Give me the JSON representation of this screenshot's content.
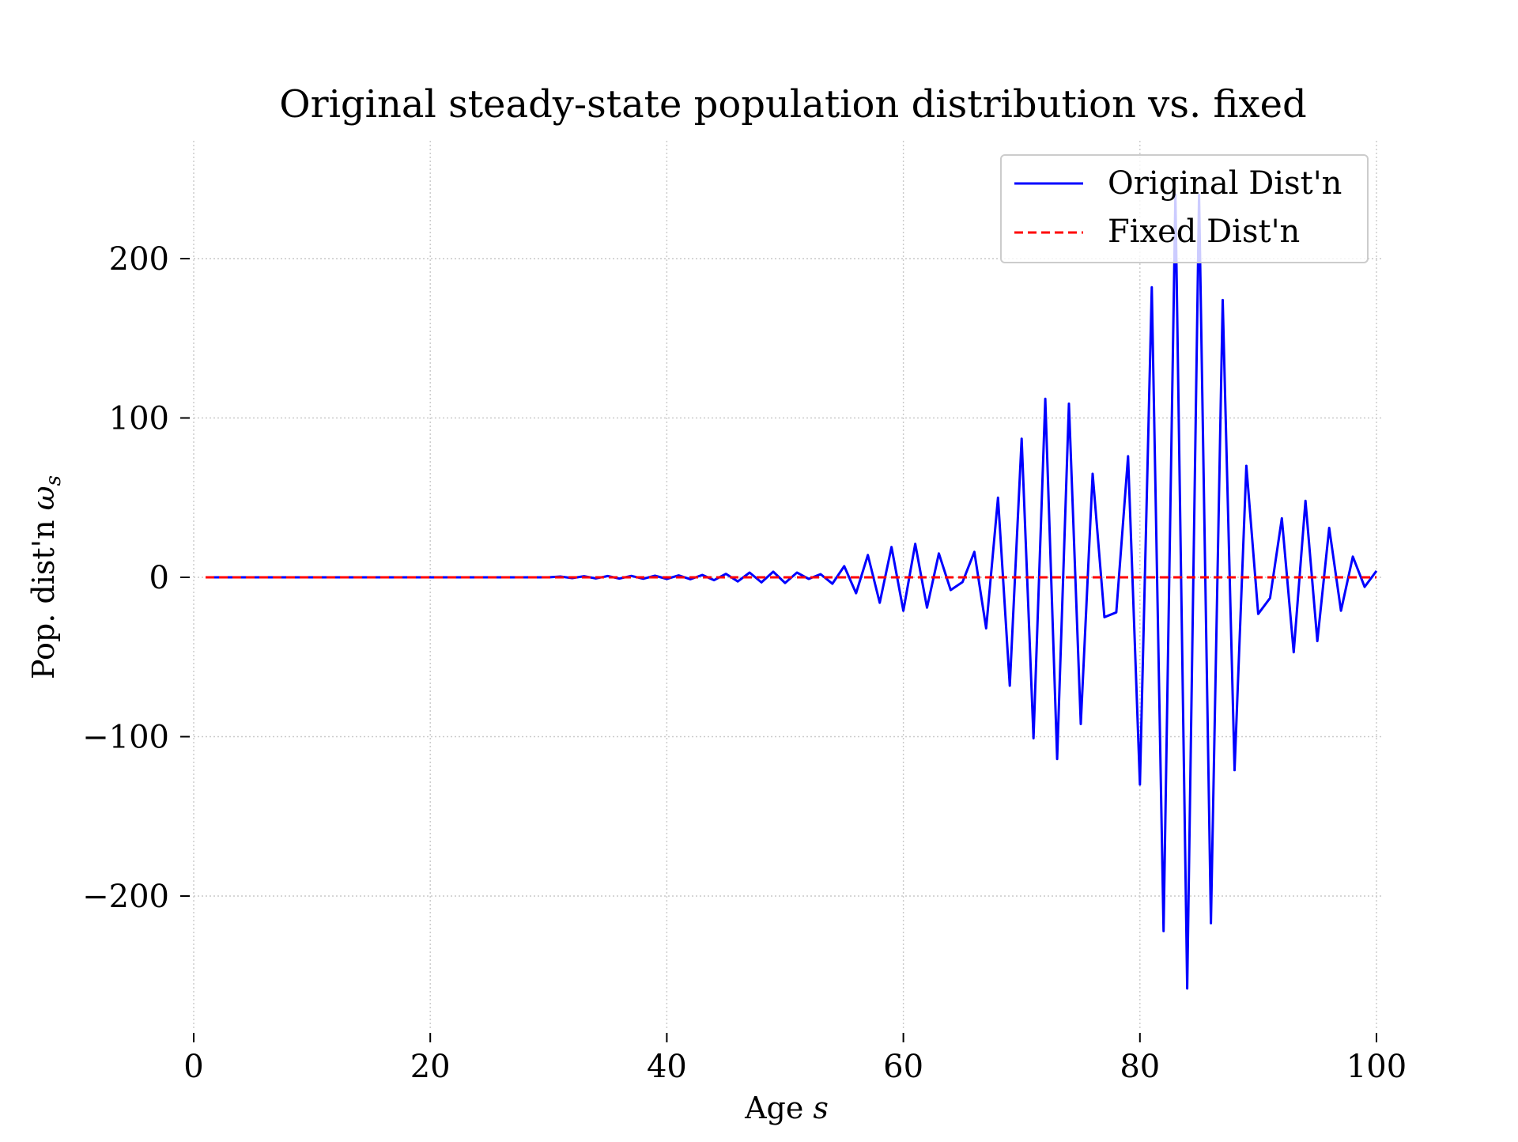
{
  "chart_data": {
    "type": "line",
    "title": "Original steady-state population distribution vs. fixed",
    "xlabel": "Age",
    "xlabel_symbol": "s",
    "ylabel": "Pop. dist'n",
    "ylabel_symbol": "ω",
    "ylabel_subscript": "s",
    "xlim": [
      0,
      100
    ],
    "ylim": [
      -260,
      260
    ],
    "x_ticks": [
      0,
      20,
      40,
      60,
      80,
      100
    ],
    "x_tick_labels": [
      "0",
      "20",
      "40",
      "60",
      "80",
      "100"
    ],
    "y_ticks": [
      200,
      100,
      0,
      -100,
      -200
    ],
    "y_tick_labels": [
      "200",
      "100",
      "0",
      "−100",
      "−200"
    ],
    "grid": true,
    "legend_position": "top-right",
    "series": [
      {
        "name": "Original Dist'n",
        "color": "#0000ff",
        "style": "solid",
        "x": [
          1,
          2,
          3,
          4,
          5,
          6,
          7,
          8,
          9,
          10,
          11,
          12,
          13,
          14,
          15,
          16,
          17,
          18,
          19,
          20,
          21,
          22,
          23,
          24,
          25,
          26,
          27,
          28,
          29,
          30,
          31,
          32,
          33,
          34,
          35,
          36,
          37,
          38,
          39,
          40,
          41,
          42,
          43,
          44,
          45,
          46,
          47,
          48,
          49,
          50,
          51,
          52,
          53,
          54,
          55,
          56,
          57,
          58,
          59,
          60,
          61,
          62,
          63,
          64,
          65,
          66,
          67,
          68,
          69,
          70,
          71,
          72,
          73,
          74,
          75,
          76,
          77,
          78,
          79,
          80,
          81,
          82,
          83,
          84,
          85,
          86,
          87,
          88,
          89,
          90,
          91,
          92,
          93,
          94,
          95,
          96,
          97,
          98,
          99,
          100
        ],
        "values": [
          0,
          0,
          0,
          0,
          0,
          0,
          0,
          0,
          0,
          0,
          0,
          0,
          0,
          0,
          0,
          0,
          0,
          0,
          0,
          0,
          0,
          0,
          0,
          0,
          0,
          0,
          0,
          0,
          0,
          0,
          0.5,
          -0.5,
          0.7,
          -0.7,
          0.8,
          -0.8,
          0.9,
          -0.9,
          1,
          -1,
          1.2,
          -1.2,
          1.5,
          -1.8,
          2.2,
          -2.6,
          3,
          -3.2,
          3.5,
          -3.5,
          3,
          -1,
          2,
          -4,
          7,
          -10,
          14,
          -16,
          19,
          -21,
          21,
          -19,
          15,
          -8,
          -3,
          16,
          -32,
          50,
          -68,
          87,
          -101,
          112,
          -114,
          109,
          -92,
          65,
          -25,
          -22,
          76,
          -130,
          182,
          -222,
          240,
          -258,
          240,
          -217,
          174,
          -121,
          70,
          -23,
          -13,
          37,
          -47,
          48,
          -40,
          31,
          -21,
          13,
          -6,
          4
        ]
      },
      {
        "name": "Fixed Dist'n",
        "color": "#ff0000",
        "style": "dashed",
        "x": [
          1,
          100
        ],
        "values": [
          0,
          0
        ]
      }
    ]
  }
}
